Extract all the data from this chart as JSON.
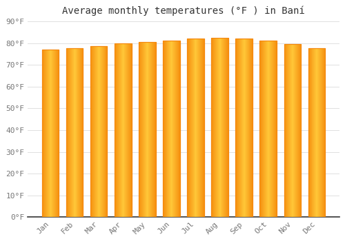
{
  "months": [
    "Jan",
    "Feb",
    "Mar",
    "Apr",
    "May",
    "Jun",
    "Jul",
    "Aug",
    "Sep",
    "Oct",
    "Nov",
    "Dec"
  ],
  "values": [
    77,
    77.5,
    78.5,
    80,
    80.5,
    81,
    82,
    82.5,
    82,
    81,
    79.5,
    77.5
  ],
  "title": "Average monthly temperatures (°F ) in Baní",
  "ylim": [
    0,
    90
  ],
  "yticks": [
    0,
    10,
    20,
    30,
    40,
    50,
    60,
    70,
    80,
    90
  ],
  "ytick_labels": [
    "0°F",
    "10°F",
    "20°F",
    "30°F",
    "40°F",
    "50°F",
    "60°F",
    "70°F",
    "80°F",
    "90°F"
  ],
  "bar_color_center": "#FFB726",
  "bar_color_edge": "#F5870A",
  "background_color": "#FFFFFF",
  "grid_color": "#E0E0E0",
  "title_fontsize": 10,
  "tick_fontsize": 8,
  "title_color": "#333333",
  "tick_color": "#777777",
  "bar_width": 0.7,
  "spine_color": "#333333"
}
